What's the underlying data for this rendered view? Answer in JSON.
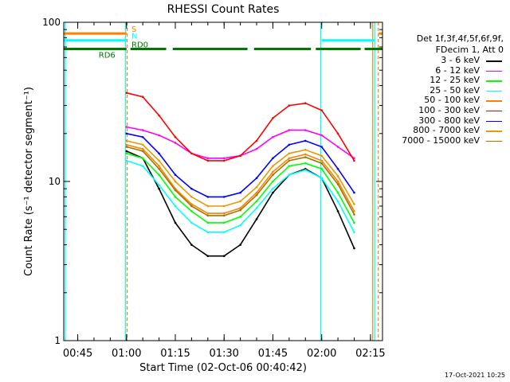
{
  "chart_data": {
    "type": "line",
    "title": "RHESSI Count Rates",
    "xlabel": "Start Time (02-Oct-06 00:40:42)",
    "ylabel": "Count Rate (s⁻¹ detector segment⁻¹)",
    "yscale": "log",
    "ylim": [
      1,
      100
    ],
    "y_ticks": [
      {
        "value": 1,
        "label": "1"
      },
      {
        "value": 10,
        "label": "10"
      },
      {
        "value": 100,
        "label": "100"
      }
    ],
    "x_range_minutes": [
      0,
      98
    ],
    "x_ticks": [
      {
        "t": 4.3,
        "label": "00:45"
      },
      {
        "t": 19.3,
        "label": "01:00"
      },
      {
        "t": 34.3,
        "label": "01:15"
      },
      {
        "t": 49.3,
        "label": "01:30"
      },
      {
        "t": 64.3,
        "label": "01:45"
      },
      {
        "t": 79.3,
        "label": "02:00"
      },
      {
        "t": 94.3,
        "label": "02:15"
      }
    ],
    "x_times": [
      "01:00:00",
      "01:05:00",
      "01:10:00",
      "01:15:00",
      "01:20:00",
      "01:25:00",
      "01:30:00",
      "01:35:00",
      "01:40:00",
      "01:45:00",
      "01:50:00",
      "01:55:00",
      "02:00:00",
      "02:05:00",
      "02:10:00"
    ],
    "x": [
      19.3,
      24.3,
      29.3,
      34.3,
      39.3,
      44.3,
      49.3,
      54.3,
      59.3,
      64.3,
      69.3,
      74.3,
      79.3,
      84.3,
      89.3
    ],
    "series": [
      {
        "name": "3 - 6 keV",
        "color": "#000000",
        "values": [
          15.5,
          14.0,
          9.0,
          5.5,
          4.0,
          3.4,
          3.4,
          4.0,
          5.8,
          8.5,
          11.0,
          12.0,
          10.5,
          6.5,
          3.8
        ]
      },
      {
        "name": "6 - 12 keV",
        "color": "#ff00ff",
        "values": [
          22.0,
          21.0,
          19.5,
          17.5,
          15.0,
          14.0,
          14.0,
          14.5,
          16.0,
          19.0,
          21.0,
          21.0,
          19.5,
          16.5,
          14.0
        ]
      },
      {
        "name": "12 - 25 keV",
        "color": "#00ff00",
        "values": [
          15.0,
          14.0,
          11.0,
          8.0,
          6.5,
          5.5,
          5.5,
          6.0,
          7.5,
          10.0,
          12.5,
          13.0,
          12.0,
          8.5,
          5.5
        ]
      },
      {
        "name": "25 - 50 keV",
        "color": "#00ffff",
        "values": [
          13.5,
          12.5,
          9.5,
          7.0,
          5.5,
          4.8,
          4.8,
          5.3,
          6.8,
          9.0,
          11.0,
          11.8,
          10.5,
          7.5,
          4.8
        ]
      },
      {
        "name": "50 - 100 keV",
        "color": "#ff8000",
        "values": [
          17.0,
          16.0,
          12.5,
          9.0,
          7.2,
          6.3,
          6.3,
          6.8,
          8.5,
          11.5,
          14.0,
          14.8,
          13.5,
          10.0,
          6.5
        ]
      },
      {
        "name": "100 - 300 keV",
        "color": "#ff0000",
        "values": [
          36.0,
          34.0,
          26.0,
          19.0,
          15.0,
          13.5,
          13.5,
          14.5,
          18.0,
          25.0,
          30.0,
          31.0,
          28.0,
          20.0,
          13.5
        ]
      },
      {
        "name": "300 - 800 keV",
        "color": "#0000ff",
        "values": [
          20.0,
          19.0,
          15.0,
          11.0,
          9.0,
          8.0,
          8.0,
          8.5,
          10.5,
          14.0,
          17.0,
          18.0,
          16.5,
          12.0,
          8.5
        ]
      },
      {
        "name": "800 - 7000 keV",
        "color": "#e69a00",
        "values": [
          18.0,
          17.0,
          13.5,
          10.0,
          8.0,
          7.0,
          7.0,
          7.5,
          9.2,
          12.5,
          15.0,
          15.8,
          14.5,
          10.8,
          7.2
        ]
      },
      {
        "name": "7000 - 15000 keV",
        "color": "#a07800",
        "values": [
          16.5,
          15.5,
          12.0,
          8.8,
          7.0,
          6.1,
          6.1,
          6.6,
          8.2,
          11.0,
          13.5,
          14.2,
          13.0,
          9.6,
          6.2
        ]
      }
    ],
    "legend_header": [
      "Det 1f,3f,4f,5f,6f,9f,",
      "FDecim 1, Att 0"
    ],
    "legend_placement": "right",
    "grid": false,
    "flag_bars": [
      {
        "label": "S",
        "color": "#ff8000",
        "value": 85,
        "segments": [
          [
            0,
            19.3
          ],
          [
            96.8,
            98
          ]
        ]
      },
      {
        "label": "N",
        "color": "#00ffff",
        "value": 77,
        "segments": [
          [
            0,
            19.3
          ],
          [
            79.3,
            95.5
          ]
        ]
      },
      {
        "label": "RD0",
        "color": "#007800",
        "value": 68,
        "segments": [
          [
            0,
            19.3
          ],
          [
            20.5,
            31.5
          ],
          [
            33.5,
            56.5
          ],
          [
            58.5,
            76
          ],
          [
            77.5,
            91.3
          ],
          [
            92.5,
            98
          ]
        ]
      }
    ],
    "flag_bars_lower_label": "RD6",
    "vertical_markers": [
      {
        "t": 0.5,
        "color": "#00ffff",
        "style": "solid"
      },
      {
        "t": 19.0,
        "color": "#00ffff",
        "style": "solid"
      },
      {
        "t": 19.5,
        "color": "#ff8000",
        "style": "dashed"
      },
      {
        "t": 79.0,
        "color": "#00ffff",
        "style": "solid"
      },
      {
        "t": 95.0,
        "color": "#ff8000",
        "style": "solid"
      },
      {
        "t": 95.6,
        "color": "#00ffff",
        "style": "solid"
      },
      {
        "t": 96.7,
        "color": "#ff8000",
        "style": "dashed"
      }
    ]
  },
  "footer": {
    "timestamp": "17-Oct-2021 10:25"
  }
}
